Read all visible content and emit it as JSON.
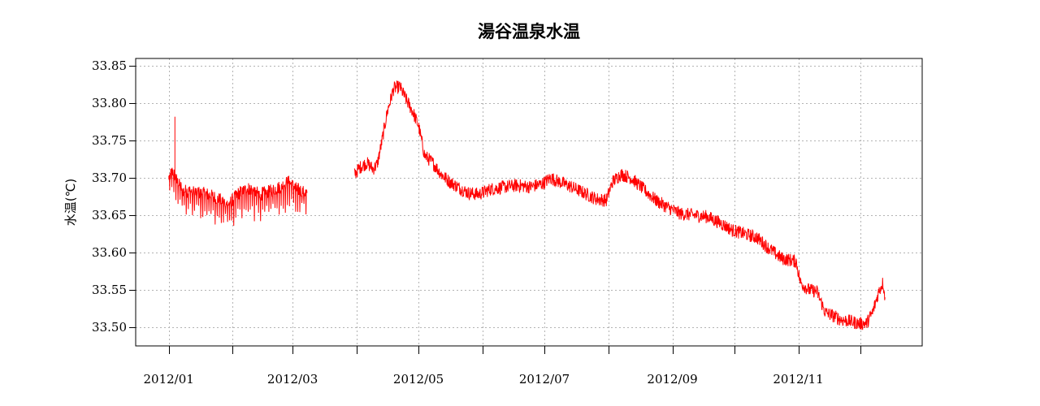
{
  "chart_data": {
    "type": "line",
    "title": "湯谷温泉水温",
    "xlabel": "",
    "ylabel": "水温(℃)",
    "x_tick_labels": [
      "2012/01",
      "2012/03",
      "2012/05",
      "2012/07",
      "2012/09",
      "2012/11"
    ],
    "x_ticks_major": [
      "2012-01-01",
      "2012-02-01",
      "2012-03-01",
      "2012-04-01",
      "2012-05-01",
      "2012-06-01",
      "2012-07-01",
      "2012-08-01",
      "2012-09-01",
      "2012-10-01",
      "2012-11-01",
      "2012-12-01"
    ],
    "x_tick_labeled": [
      "2012-01-01",
      "2012-03-01",
      "2012-05-01",
      "2012-07-01",
      "2012-09-01",
      "2012-11-01"
    ],
    "xlim": [
      "2011-12-16",
      "2012-12-31"
    ],
    "ylim": [
      33.475,
      33.86
    ],
    "y_ticks": [
      33.5,
      33.55,
      33.6,
      33.65,
      33.7,
      33.75,
      33.8,
      33.85
    ],
    "y_tick_labels": [
      "33.50",
      "33.55",
      "33.60",
      "33.65",
      "33.70",
      "33.75",
      "33.80",
      "33.85"
    ],
    "grid": true,
    "color": "#ff0000",
    "series": [
      {
        "segments": [
          {
            "x": [
              "2012-01-01",
              "2012-01-03",
              "2012-01-05",
              "2012-01-08",
              "2012-01-12",
              "2012-01-16",
              "2012-01-20",
              "2012-01-25",
              "2012-01-30",
              "2012-02-04",
              "2012-02-09",
              "2012-02-14",
              "2012-02-19",
              "2012-02-24",
              "2012-02-28",
              "2012-03-03",
              "2012-03-08"
            ],
            "y": [
              33.7,
              33.71,
              33.695,
              33.683,
              33.682,
              33.68,
              33.678,
              33.672,
              33.665,
              33.68,
              33.686,
              33.678,
              33.682,
              33.688,
              33.695,
              33.685,
              33.68
            ]
          },
          {
            "x": [
              "2012-03-31",
              "2012-04-03",
              "2012-04-06",
              "2012-04-09",
              "2012-04-11",
              "2012-04-13",
              "2012-04-16",
              "2012-04-19",
              "2012-04-22",
              "2012-04-25",
              "2012-04-28",
              "2012-05-01",
              "2012-05-04",
              "2012-05-08",
              "2012-05-12",
              "2012-05-16",
              "2012-05-20",
              "2012-05-25",
              "2012-05-30",
              "2012-06-05",
              "2012-06-12",
              "2012-06-18",
              "2012-06-24",
              "2012-06-30",
              "2012-07-04",
              "2012-07-08",
              "2012-07-14",
              "2012-07-20",
              "2012-07-26",
              "2012-07-31",
              "2012-08-03",
              "2012-08-07",
              "2012-08-12",
              "2012-08-18",
              "2012-08-24",
              "2012-08-30",
              "2012-09-05",
              "2012-09-12",
              "2012-09-18",
              "2012-09-24",
              "2012-09-30",
              "2012-10-06",
              "2012-10-12",
              "2012-10-18",
              "2012-10-24",
              "2012-10-28",
              "2012-10-31",
              "2012-11-02",
              "2012-11-06",
              "2012-11-10",
              "2012-11-14",
              "2012-11-18",
              "2012-11-22",
              "2012-11-26",
              "2012-11-30",
              "2012-12-04",
              "2012-12-07",
              "2012-12-10",
              "2012-12-12",
              "2012-12-13"
            ],
            "y": [
              33.705,
              33.715,
              33.72,
              33.712,
              33.718,
              33.745,
              33.79,
              33.82,
              33.822,
              33.805,
              33.79,
              33.77,
              33.73,
              33.72,
              33.705,
              33.695,
              33.688,
              33.68,
              33.678,
              33.685,
              33.688,
              33.69,
              33.688,
              33.692,
              33.7,
              33.695,
              33.688,
              33.68,
              33.672,
              33.67,
              33.695,
              33.705,
              33.7,
              33.685,
              33.67,
              33.66,
              33.652,
              33.65,
              33.648,
              33.64,
              33.63,
              33.625,
              33.62,
              33.605,
              33.592,
              33.59,
              33.588,
              33.56,
              33.55,
              33.548,
              33.52,
              33.515,
              33.51,
              33.508,
              33.505,
              33.505,
              33.52,
              33.548,
              33.56,
              33.54
            ]
          }
        ]
      }
    ]
  }
}
